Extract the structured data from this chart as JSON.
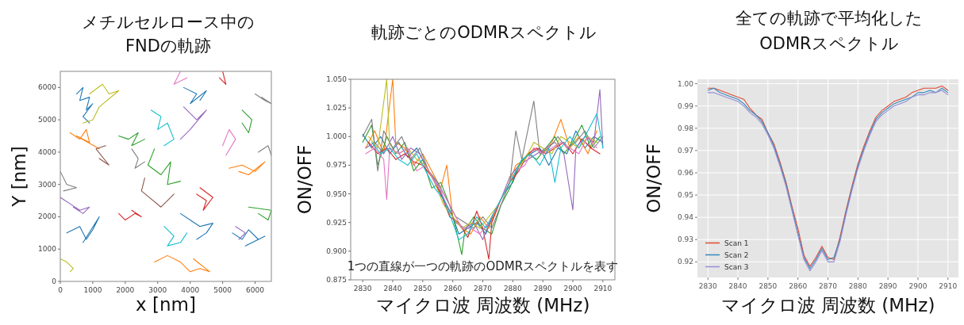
{
  "chart_data": [
    {
      "type": "line",
      "title": "メチルセルロース中の\nFNDの軌跡",
      "xlabel": "x [nm]",
      "ylabel": "Y [nm]",
      "xlim": [
        0,
        6500
      ],
      "ylim": [
        0,
        6500
      ],
      "xticks": [
        0,
        1000,
        2000,
        3000,
        4000,
        5000,
        6000
      ],
      "yticks": [
        0,
        1000,
        2000,
        3000,
        4000,
        5000,
        6000
      ],
      "grid": false,
      "legend": false,
      "series": [
        {
          "color": "#1f77b4",
          "x": [
            500,
            700,
            600,
            900,
            800,
            1000,
            700,
            900
          ],
          "values": [
            5800,
            6000,
            5600,
            5700,
            5300,
            5500,
            5100,
            4900
          ]
        },
        {
          "color": "#ff7f0e",
          "x": [
            300,
            600,
            800,
            900,
            500,
            1200
          ],
          "values": [
            4600,
            4400,
            4700,
            4300,
            4500,
            4100
          ]
        },
        {
          "color": "#bcbd22",
          "x": [
            900,
            1300,
            1500,
            1800,
            1200,
            1000,
            700
          ],
          "values": [
            5800,
            6100,
            5800,
            5900,
            5400,
            5000,
            4900
          ]
        },
        {
          "color": "#7f7f7f",
          "x": [
            0,
            200,
            500,
            100
          ],
          "values": [
            3400,
            3000,
            2900,
            2800
          ]
        },
        {
          "color": "#9467bd",
          "x": [
            0,
            300,
            600,
            900,
            700,
            400
          ],
          "values": [
            2600,
            2400,
            2200,
            2300,
            2100,
            2300
          ]
        },
        {
          "color": "#1f77b4",
          "x": [
            200,
            600,
            800,
            1000,
            1200,
            700
          ],
          "values": [
            1500,
            1700,
            1300,
            1600,
            2000,
            1200
          ]
        },
        {
          "color": "#bcbd22",
          "x": [
            0,
            200,
            400,
            300
          ],
          "values": [
            700,
            600,
            400,
            300
          ]
        },
        {
          "color": "#d62728",
          "x": [
            1800,
            2000,
            2300,
            2500,
            2200
          ],
          "values": [
            2100,
            1900,
            2100,
            2000,
            2200
          ]
        },
        {
          "color": "#2ca02c",
          "x": [
            1800,
            2100,
            2400,
            2200,
            2600
          ],
          "values": [
            4500,
            4400,
            4600,
            4200,
            4400
          ]
        },
        {
          "color": "#7f7f7f",
          "x": [
            2200,
            2400,
            2300,
            2600
          ],
          "values": [
            4100,
            3800,
            3500,
            3700
          ]
        },
        {
          "color": "#17becf",
          "x": [
            2800,
            3100,
            3000,
            3300,
            3500,
            3200
          ],
          "values": [
            5300,
            5100,
            4700,
            4900,
            4400,
            4200
          ]
        },
        {
          "color": "#2ca02c",
          "x": [
            2900,
            2700,
            3100,
            3400,
            3300,
            3700
          ],
          "values": [
            4100,
            3600,
            3300,
            3700,
            3000,
            3100
          ]
        },
        {
          "color": "#9467bd",
          "x": [
            3800,
            4200,
            4500,
            4000,
            3700
          ],
          "values": [
            5400,
            5000,
            5300,
            4700,
            4400
          ]
        },
        {
          "color": "#1f77b4",
          "x": [
            3800,
            4200,
            4000,
            4500,
            4300
          ],
          "values": [
            6000,
            5800,
            5500,
            5900,
            5600
          ]
        },
        {
          "color": "#ff7f0e",
          "x": [
            2900,
            3300,
            3700,
            4000,
            4300,
            4600,
            4100
          ],
          "values": [
            600,
            800,
            600,
            300,
            400,
            300,
            700
          ]
        },
        {
          "color": "#17becf",
          "x": [
            3200,
            3500,
            3300,
            3700,
            3900
          ],
          "values": [
            1700,
            1400,
            1100,
            1200,
            1500
          ]
        },
        {
          "color": "#1f77b4",
          "x": [
            3700,
            4000,
            4300,
            4700,
            4500,
            4200
          ],
          "values": [
            2100,
            1900,
            1700,
            1800,
            1500,
            1300
          ]
        },
        {
          "color": "#d62728",
          "x": [
            4200,
            4500,
            4400,
            4700,
            4300
          ],
          "values": [
            2700,
            2500,
            2200,
            2600,
            2900
          ]
        },
        {
          "color": "#1f77b4",
          "x": [
            5300,
            5600,
            5800,
            6100,
            5700,
            6300
          ],
          "values": [
            1500,
            1300,
            1600,
            1300,
            1100,
            1400
          ]
        },
        {
          "color": "#9467bd",
          "x": [
            5400,
            5700,
            5500
          ],
          "values": [
            1700,
            1500,
            1300
          ]
        },
        {
          "color": "#ff7f0e",
          "x": [
            5200,
            5600,
            6000,
            6300,
            5800,
            5500
          ],
          "values": [
            3500,
            3600,
            3400,
            3700,
            3300,
            3400
          ]
        },
        {
          "color": "#7f7f7f",
          "x": [
            6000,
            6300,
            6500,
            6200
          ],
          "values": [
            5800,
            5600,
            5500,
            5700
          ]
        },
        {
          "color": "#2ca02c",
          "x": [
            5600,
            5900,
            5800,
            5600
          ],
          "values": [
            5300,
            5000,
            4600,
            4900
          ]
        },
        {
          "color": "#d62728",
          "x": [
            4900,
            5100,
            5000
          ],
          "values": [
            6300,
            6100,
            6500
          ]
        },
        {
          "color": "#e377c2",
          "x": [
            5000,
            5200,
            5400,
            5100
          ],
          "values": [
            4200,
            4700,
            4400,
            3900
          ]
        },
        {
          "color": "#8c564b",
          "x": [
            3300,
            3500,
            3100,
            2500,
            2600
          ],
          "values": [
            2500,
            2700,
            2300,
            2800,
            3200
          ]
        },
        {
          "color": "#2ca02c",
          "x": [
            6100,
            6400,
            6500,
            5800
          ],
          "values": [
            2100,
            1900,
            2200,
            2300
          ]
        },
        {
          "color": "#7f7f7f",
          "x": [
            6100,
            6400,
            6500
          ],
          "values": [
            4000,
            4200,
            3900
          ]
        },
        {
          "color": "#e377c2",
          "x": [
            3900,
            3500,
            3700
          ],
          "values": [
            6300,
            6100,
            6500
          ]
        },
        {
          "color": "#8c564b",
          "x": [
            1200,
            1500,
            1100,
            1400
          ],
          "values": [
            3800,
            3600,
            4100,
            4200
          ]
        }
      ]
    },
    {
      "type": "line",
      "title": "軌跡ごとのODMRスペクトル",
      "xlabel": "マイクロ波 周波数 (MHz)",
      "ylabel": "ON/OFF",
      "xlim": [
        2826,
        2914
      ],
      "ylim": [
        0.875,
        1.05
      ],
      "xticks": [
        2830,
        2840,
        2850,
        2860,
        2870,
        2880,
        2890,
        2900,
        2910
      ],
      "yticks": [
        0.875,
        {
          "value": 0.9,
          "label": "0.900"
        },
        0.925,
        {
          "value": 0.95,
          "label": "0.950"
        },
        0.975,
        {
          "value": 1,
          "label": "1.000"
        },
        1.025,
        {
          "value": 1.05,
          "label": "1.050"
        }
      ],
      "grid": false,
      "legend": false,
      "annotations": [
        "1つの直線が一つの軌跡のODMRスペクトルを表す"
      ],
      "series": [
        {
          "color": "#1f77b4",
          "x": [
            2830,
            2833,
            2836,
            2839,
            2842,
            2845,
            2848,
            2851,
            2854,
            2857,
            2860,
            2862,
            2865,
            2868,
            2871,
            2874,
            2877,
            2880,
            2883,
            2886,
            2889,
            2892,
            2895,
            2898,
            2901,
            2904,
            2907,
            2910
          ],
          "values": [
            1.002,
            0.99,
            1.0,
            0.985,
            0.995,
            0.982,
            0.99,
            0.975,
            0.96,
            0.945,
            0.93,
            0.915,
            0.92,
            0.925,
            0.915,
            0.935,
            0.95,
            0.96,
            0.98,
            0.985,
            0.99,
            0.975,
            0.99,
            0.985,
            1.005,
            0.99,
            1.0,
            0.995
          ]
        },
        {
          "color": "#ff7f0e",
          "x": [
            2831,
            2834,
            2837,
            2840,
            2841,
            2844,
            2847,
            2850,
            2853,
            2856,
            2858,
            2860,
            2863,
            2866,
            2869,
            2872,
            2875,
            2878,
            2881,
            2884,
            2887,
            2890,
            2893,
            2896,
            2899,
            2902,
            2905,
            2908
          ],
          "values": [
            0.99,
            1.005,
            0.985,
            1.05,
            0.995,
            0.99,
            0.975,
            0.985,
            0.97,
            0.955,
            0.975,
            0.93,
            0.92,
            0.915,
            0.93,
            0.92,
            0.94,
            0.955,
            0.975,
            0.98,
            0.99,
            0.985,
            0.995,
            1.015,
            0.99,
            1.0,
            0.985,
            1.005
          ]
        },
        {
          "color": "#2ca02c",
          "x": [
            2830,
            2833,
            2835,
            2838,
            2841,
            2844,
            2847,
            2850,
            2853,
            2856,
            2859,
            2861,
            2863,
            2864,
            2867,
            2870,
            2873,
            2876,
            2879,
            2882,
            2885,
            2888,
            2891,
            2894,
            2897,
            2900,
            2903,
            2906,
            2909
          ],
          "values": [
            0.995,
            1.01,
            0.975,
            1.0,
            0.985,
            0.995,
            0.97,
            0.98,
            0.955,
            0.96,
            0.94,
            0.92,
            0.897,
            0.918,
            0.93,
            0.92,
            0.915,
            0.94,
            0.955,
            0.975,
            0.985,
            0.98,
            0.99,
            1.0,
            0.985,
            0.995,
            1.01,
            0.99,
            1.0
          ]
        },
        {
          "color": "#d62728",
          "x": [
            2832,
            2835,
            2838,
            2841,
            2844,
            2847,
            2850,
            2853,
            2856,
            2859,
            2862,
            2865,
            2868,
            2870,
            2872,
            2873,
            2876,
            2879,
            2882,
            2885,
            2888,
            2891,
            2894,
            2897,
            2900,
            2903,
            2906,
            2909
          ],
          "values": [
            0.995,
            0.985,
            0.99,
            0.98,
            0.985,
            0.978,
            0.975,
            0.965,
            0.95,
            0.93,
            0.925,
            0.912,
            0.935,
            0.92,
            0.893,
            0.925,
            0.945,
            0.96,
            0.97,
            0.985,
            0.99,
            0.985,
            0.99,
            0.995,
            0.985,
            0.998,
            0.99,
            0.985
          ]
        },
        {
          "color": "#9467bd",
          "x": [
            2831,
            2834,
            2837,
            2840,
            2843,
            2846,
            2849,
            2852,
            2855,
            2858,
            2861,
            2864,
            2867,
            2870,
            2873,
            2876,
            2879,
            2882,
            2885,
            2888,
            2891,
            2894,
            2897,
            2900,
            2901,
            2904,
            2907,
            2909,
            2910
          ],
          "values": [
            0.99,
            0.995,
            0.985,
            1.0,
            0.98,
            0.99,
            0.985,
            0.97,
            0.958,
            0.94,
            0.925,
            0.92,
            0.925,
            0.91,
            0.93,
            0.945,
            0.965,
            0.975,
            0.98,
            0.985,
            0.99,
            0.995,
            0.985,
            0.936,
            0.99,
            1.0,
            0.995,
            1.041,
            0.99
          ]
        },
        {
          "color": "#7f7f7f",
          "x": [
            2830,
            2833,
            2835,
            2837,
            2840,
            2843,
            2846,
            2849,
            2852,
            2855,
            2858,
            2861,
            2864,
            2867,
            2870,
            2873,
            2876,
            2879,
            2881,
            2883,
            2887,
            2889,
            2892,
            2895,
            2898,
            2901,
            2904,
            2907,
            2910
          ],
          "values": [
            1.0,
            1.015,
            0.97,
            1.005,
            0.99,
            1.0,
            0.98,
            0.99,
            0.97,
            0.96,
            0.945,
            0.93,
            0.925,
            0.92,
            0.93,
            0.92,
            0.94,
            0.96,
            1.005,
            0.98,
            1.031,
            0.985,
            0.99,
            1.0,
            0.99,
            0.995,
            1.005,
            0.99,
            1.0
          ]
        },
        {
          "color": "#bcbd22",
          "x": [
            2832,
            2835,
            2838,
            2839,
            2842,
            2845,
            2848,
            2851,
            2854,
            2857,
            2860,
            2863,
            2866,
            2869,
            2872,
            2875,
            2878,
            2881,
            2884,
            2887,
            2890,
            2893,
            2896,
            2899,
            2902,
            2905,
            2908
          ],
          "values": [
            1.0,
            0.99,
            1.05,
            0.99,
            0.985,
            0.99,
            0.98,
            0.975,
            0.96,
            0.94,
            0.93,
            0.92,
            0.925,
            0.92,
            0.93,
            0.94,
            0.955,
            0.97,
            0.98,
            0.995,
            0.99,
            0.985,
            1.0,
            0.995,
            0.99,
            1.0,
            0.995
          ]
        },
        {
          "color": "#e377c2",
          "x": [
            2831,
            2834,
            2837,
            2838,
            2839,
            2842,
            2845,
            2848,
            2851,
            2854,
            2857,
            2860,
            2863,
            2866,
            2869,
            2872,
            2875,
            2878,
            2881,
            2884,
            2887,
            2890,
            2893,
            2896,
            2899,
            2902,
            2905,
            2908
          ],
          "values": [
            0.985,
            0.99,
            0.98,
            0.945,
            0.99,
            0.985,
            0.99,
            0.97,
            0.975,
            0.96,
            0.95,
            0.935,
            0.92,
            0.92,
            0.915,
            0.925,
            0.94,
            0.955,
            0.97,
            0.975,
            0.99,
            0.985,
            0.99,
            0.995,
            0.99,
            0.985,
            1.0,
            0.99
          ]
        },
        {
          "color": "#17becf",
          "x": [
            2833,
            2836,
            2839,
            2842,
            2845,
            2848,
            2851,
            2854,
            2857,
            2860,
            2862,
            2865,
            2868,
            2871,
            2874,
            2877,
            2880,
            2883,
            2886,
            2889,
            2892,
            2894,
            2896,
            2899,
            2902,
            2905,
            2908,
            2910
          ],
          "values": [
            0.995,
            0.985,
            0.99,
            0.98,
            0.975,
            0.985,
            0.97,
            0.955,
            0.945,
            0.925,
            0.91,
            0.915,
            0.93,
            0.92,
            0.935,
            0.95,
            0.965,
            0.98,
            0.985,
            0.975,
            0.99,
            0.96,
            0.99,
            1.0,
            0.99,
            1.005,
            1.02,
            0.99
          ]
        }
      ]
    },
    {
      "type": "line",
      "title": "全ての軌跡で平均化した\nODMRスペクトル",
      "xlabel": "マイクロ波 周波数 (MHz)",
      "ylabel": "ON/OFF",
      "xlim": [
        2826.5,
        2913.5
      ],
      "ylim": [
        0.913,
        1.002
      ],
      "xticks": [
        2830,
        2840,
        2850,
        2860,
        2870,
        2880,
        2890,
        2900,
        2910
      ],
      "yticks": [
        0.92,
        0.93,
        0.94,
        0.95,
        0.96,
        0.97,
        0.98,
        0.99,
        {
          "value": 1,
          "label": "1.00"
        }
      ],
      "grid": true,
      "legend": "bottom left",
      "x": [
        2830,
        2832,
        2834,
        2836,
        2838,
        2840,
        2842,
        2844,
        2846,
        2848,
        2850,
        2852,
        2854,
        2856,
        2858,
        2860,
        2862,
        2864,
        2866,
        2868,
        2870,
        2872,
        2874,
        2876,
        2878,
        2880,
        2882,
        2884,
        2886,
        2888,
        2890,
        2892,
        2894,
        2896,
        2898,
        2900,
        2902,
        2904,
        2906,
        2908,
        2910
      ],
      "series": [
        {
          "name": "Scan 1",
          "color": "#e24a33",
          "values": [
            0.998,
            0.998,
            0.997,
            0.996,
            0.995,
            0.994,
            0.993,
            0.989,
            0.986,
            0.984,
            0.978,
            0.973,
            0.965,
            0.956,
            0.945,
            0.935,
            0.923,
            0.918,
            0.922,
            0.927,
            0.922,
            0.921,
            0.931,
            0.943,
            0.954,
            0.964,
            0.972,
            0.979,
            0.985,
            0.988,
            0.99,
            0.992,
            0.993,
            0.994,
            0.996,
            0.997,
            0.998,
            0.998,
            0.998,
            0.999,
            0.997
          ]
        },
        {
          "name": "Scan 2",
          "color": "#348abd",
          "values": [
            0.997,
            0.998,
            0.996,
            0.995,
            0.994,
            0.993,
            0.991,
            0.988,
            0.986,
            0.983,
            0.978,
            0.972,
            0.964,
            0.955,
            0.944,
            0.933,
            0.922,
            0.917,
            0.921,
            0.926,
            0.921,
            0.922,
            0.93,
            0.942,
            0.953,
            0.963,
            0.971,
            0.978,
            0.984,
            0.987,
            0.989,
            0.991,
            0.992,
            0.993,
            0.994,
            0.996,
            0.996,
            0.997,
            0.996,
            0.998,
            0.996
          ]
        },
        {
          "name": "Scan 3",
          "color": "#988ed5",
          "values": [
            0.996,
            0.996,
            0.995,
            0.994,
            0.993,
            0.992,
            0.99,
            0.987,
            0.985,
            0.982,
            0.977,
            0.971,
            0.963,
            0.954,
            0.943,
            0.932,
            0.921,
            0.916,
            0.92,
            0.925,
            0.92,
            0.92,
            0.929,
            0.941,
            0.952,
            0.962,
            0.97,
            0.977,
            0.983,
            0.986,
            0.988,
            0.99,
            0.991,
            0.992,
            0.994,
            0.995,
            0.995,
            0.996,
            0.996,
            0.997,
            0.995
          ]
        }
      ]
    }
  ]
}
